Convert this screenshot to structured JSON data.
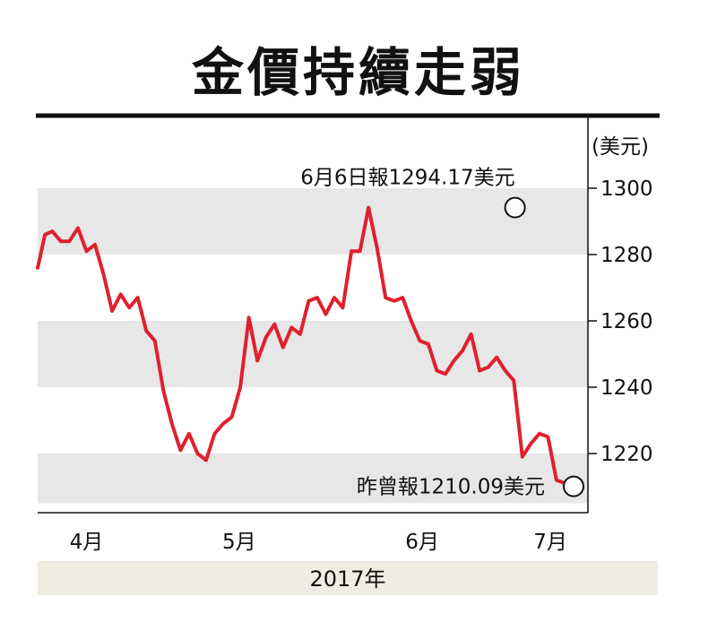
{
  "chart_data": {
    "type": "line",
    "title": "金價持續走弱",
    "unit": "(美元)",
    "ylim": [
      1205,
      1300
    ],
    "yticks": [
      1220,
      1240,
      1260,
      1280,
      1300
    ],
    "ytick_labels": [
      "1220",
      "1240",
      "1260",
      "1280",
      "1300"
    ],
    "grid": "alternating horizontal bands",
    "x_month_labels": [
      "4月",
      "5月",
      "6月",
      "7月"
    ],
    "x_month_positions": [
      4,
      16.5,
      31.5,
      42
    ],
    "x_year_label": "2017年",
    "line_color": "#e0202e",
    "series": [
      {
        "x": [
          0,
          0.6,
          1.2,
          1.9,
          2.6,
          3.3,
          4,
          4.7,
          5.4,
          6.1,
          6.8,
          7.5,
          8.2,
          8.9,
          9.6,
          10.3,
          11,
          11.7,
          12.4,
          13.1,
          13.8,
          14.5,
          15.2,
          15.9,
          16.6,
          17.3,
          18,
          18.7,
          19.4,
          20.1,
          20.8,
          21.5,
          22.2,
          22.9,
          23.6,
          24.3,
          25,
          25.7,
          26.4,
          27.1,
          27.8,
          28.5,
          29.2,
          29.9,
          30.6,
          31.3,
          32,
          32.7,
          33.4,
          34.1,
          34.8,
          35.5,
          36.2,
          36.9,
          37.6,
          38.3,
          39,
          39.7,
          40.4,
          41.1,
          41.8,
          42.5,
          43.2,
          43.9
        ],
        "y": [
          1276,
          1286,
          1287,
          1284,
          1284,
          1288,
          1281,
          1283,
          1274,
          1263,
          1268,
          1264,
          1267,
          1257,
          1254,
          1239,
          1229,
          1221,
          1226,
          1220,
          1218,
          1226,
          1229,
          1231,
          1240,
          1261,
          1248,
          1255,
          1259,
          1252,
          1258,
          1256,
          1266,
          1267,
          1262,
          1267,
          1264,
          1281,
          1281,
          1294.17,
          1282,
          1267,
          1266,
          1267,
          1260,
          1254,
          1253,
          1245,
          1244,
          1248,
          1251,
          1256,
          1245,
          1246,
          1249,
          1245,
          1242,
          1219,
          1223,
          1226,
          1225,
          1212,
          1211,
          1210.09
        ]
      }
    ],
    "annotations": [
      {
        "text": "6月6日報1294.17美元",
        "x": 39.1,
        "y": 1294.17
      },
      {
        "text": "昨曾報1210.09美元",
        "x": 43.9,
        "y": 1210.09
      }
    ]
  }
}
